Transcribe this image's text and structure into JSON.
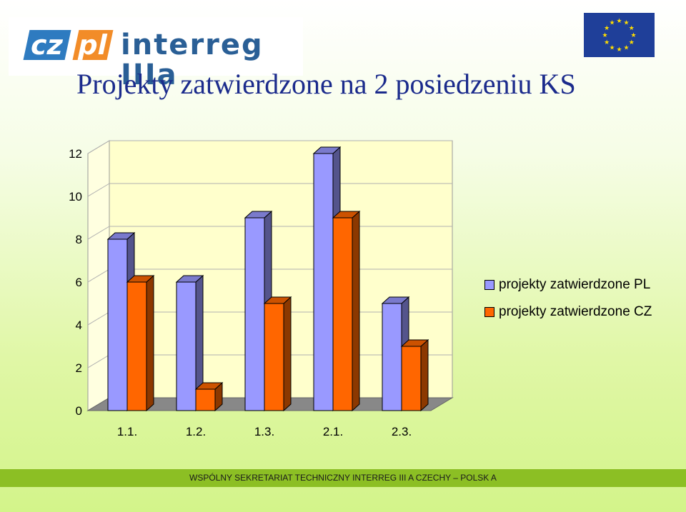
{
  "logo": {
    "cz": "cz",
    "pl": "pl",
    "word": "interreg IIIa"
  },
  "eu_flag": {
    "icon": "eu-flag-icon"
  },
  "title": "Projekty zatwierdzone na 2 posiedzeniu KS",
  "chart_data": {
    "type": "bar",
    "title": "Projekty zatwierdzone na 2 posiedzeniu KS",
    "categories": [
      "1.1.",
      "1.2.",
      "1.3.",
      "2.1.",
      "2.3."
    ],
    "series": [
      {
        "name": "projekty zatwierdzone PL",
        "values": [
          8,
          6,
          9,
          12,
          5
        ],
        "color": "#9999ff"
      },
      {
        "name": "projekty zatwierdzone CZ",
        "values": [
          6,
          1,
          5,
          9,
          3
        ],
        "color": "#ff6600"
      }
    ],
    "yticks": [
      0,
      2,
      4,
      6,
      8,
      10,
      12
    ],
    "ylim": [
      0,
      12
    ],
    "grid": true,
    "legend": "right",
    "style": "3d-clustered-column",
    "wall_color": "#ffffcc"
  },
  "legend": {
    "pl": "projekty zatwierdzone PL",
    "cz": "projekty zatwierdzone CZ"
  },
  "footer": "WSPÓLNY SEKRETARIAT TECHNICZNY  INTERREG  III A CZECHY – POLSK A"
}
